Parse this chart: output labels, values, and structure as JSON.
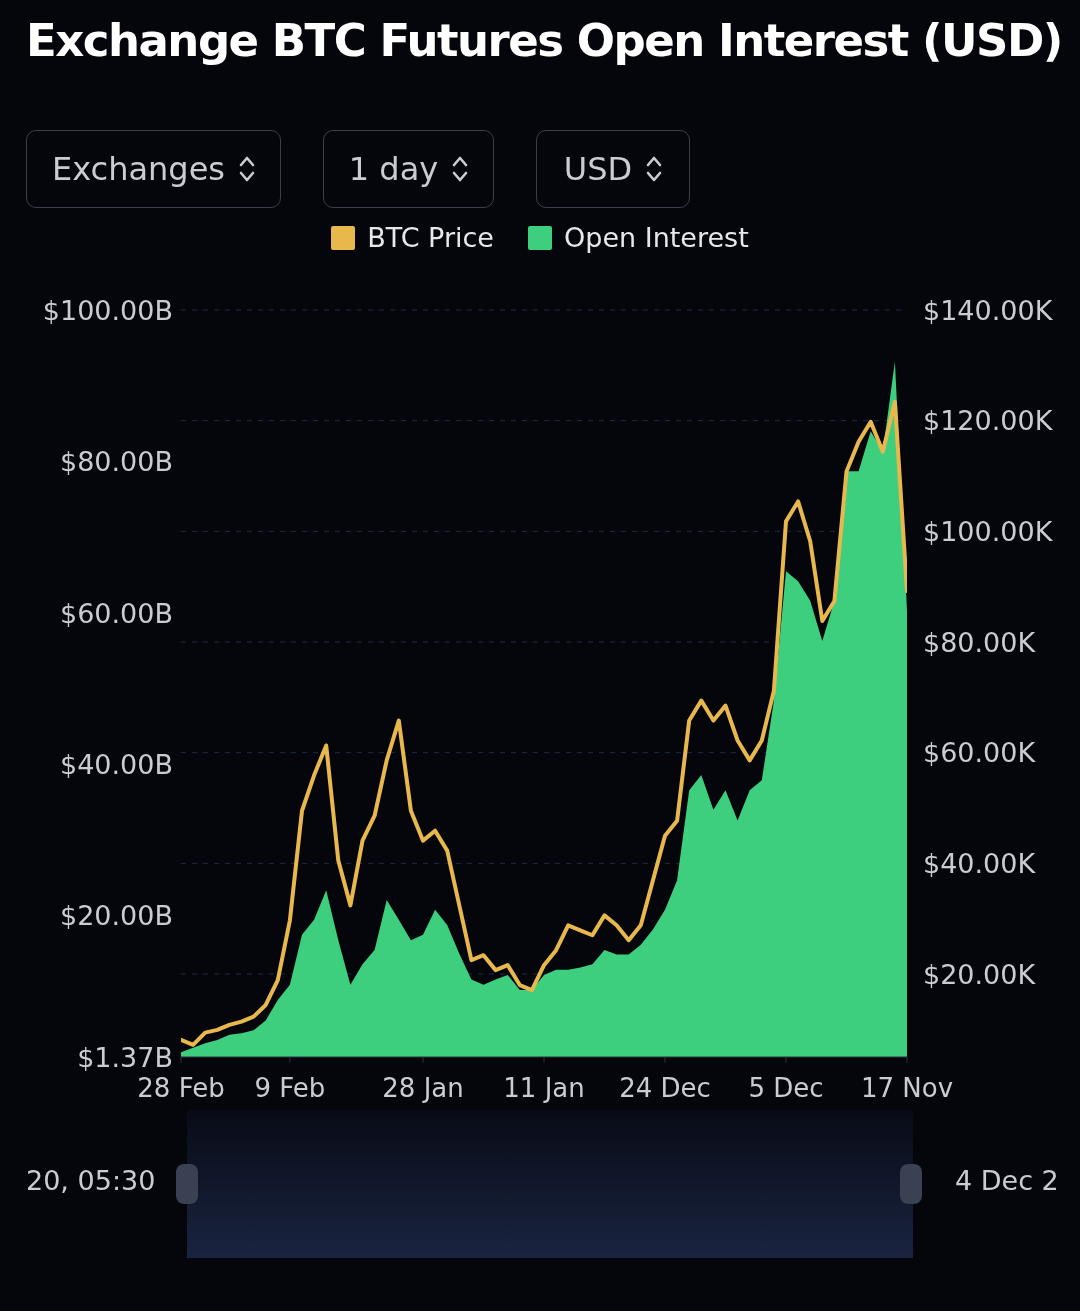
{
  "chart_data": {
    "type": "line",
    "title": "Exchange BTC Futures Open Interest (USD)",
    "categories": [
      "28 Feb",
      null,
      null,
      null,
      null,
      null,
      null,
      null,
      null,
      "9 Feb",
      null,
      null,
      null,
      null,
      null,
      null,
      null,
      null,
      null,
      null,
      "28 Jan",
      null,
      null,
      null,
      null,
      null,
      null,
      null,
      null,
      null,
      "11 Jan",
      null,
      null,
      null,
      null,
      null,
      null,
      null,
      null,
      null,
      "24 Dec",
      null,
      null,
      null,
      null,
      null,
      null,
      null,
      null,
      null,
      "5 Dec",
      null,
      null,
      null,
      null,
      null,
      null,
      null,
      null,
      null,
      "17 Nov"
    ],
    "series": [
      {
        "name": "BTC Price",
        "axis": "y2",
        "color": "#e9b84c",
        "values": [
          8.1,
          7.2,
          9.4,
          9.9,
          10.8,
          11.4,
          12.3,
          14.4,
          18.9,
          29.7,
          49.5,
          55.9,
          61.3,
          40.5,
          32.4,
          44.1,
          48.6,
          58.6,
          65.8,
          49.5,
          44.1,
          45.9,
          42.3,
          32.4,
          22.5,
          23.4,
          20.7,
          21.6,
          18.0,
          17.1,
          21.6,
          24.3,
          28.8,
          27.9,
          27.0,
          30.6,
          28.8,
          26.1,
          28.8,
          36.9,
          45.0,
          47.7,
          65.8,
          69.4,
          65.8,
          68.5,
          62.2,
          58.6,
          62.2,
          71.2,
          101.8,
          105.4,
          98.2,
          83.8,
          87.4,
          110.8,
          116.2,
          119.8,
          114.4,
          123.4,
          89.2
        ]
      },
      {
        "name": "Open Interest",
        "type": "area",
        "color": "#3ecf7e",
        "values": [
          2.0,
          2.6,
          3.2,
          3.6,
          4.3,
          4.5,
          4.9,
          6.2,
          8.9,
          10.9,
          17.5,
          19.5,
          23.4,
          16.8,
          10.9,
          13.6,
          15.5,
          22.1,
          19.5,
          16.8,
          17.5,
          20.8,
          18.8,
          15.0,
          11.6,
          10.9,
          11.6,
          12.2,
          10.2,
          10.2,
          12.2,
          12.9,
          12.9,
          13.2,
          13.6,
          15.5,
          14.9,
          14.9,
          16.2,
          18.2,
          20.8,
          24.7,
          36.6,
          38.6,
          34.0,
          36.6,
          32.6,
          36.6,
          37.9,
          48.4,
          65.5,
          64.2,
          61.6,
          56.3,
          61.6,
          78.7,
          78.7,
          84.0,
          81.3,
          93.2,
          60.3
        ]
      }
    ],
    "ylim": [
      1.37,
      100
    ],
    "yticks": [
      {
        "value": 1.37,
        "label": "$1.37B"
      },
      {
        "value": 20,
        "label": "$20.00B"
      },
      {
        "value": 40,
        "label": "$40.00B"
      },
      {
        "value": 60,
        "label": "$60.00B"
      },
      {
        "value": 80,
        "label": "$80.00B"
      },
      {
        "value": 100,
        "label": "$100.00B"
      }
    ],
    "y2lim": [
      5,
      140
    ],
    "y2ticks": [
      {
        "value": 20,
        "label": "$20.00K"
      },
      {
        "value": 40,
        "label": "$40.00K"
      },
      {
        "value": 60,
        "label": "$60.00K"
      },
      {
        "value": 80,
        "label": "$80.00K"
      },
      {
        "value": 100,
        "label": "$100.00K"
      },
      {
        "value": 120,
        "label": "$120.00K"
      },
      {
        "value": 140,
        "label": "$140.00K"
      }
    ],
    "grid": "y",
    "legend": "top",
    "annotations": [
      "Exchanges",
      "1 day",
      "USD",
      "20, 05:30",
      "4 Dec 2"
    ]
  }
}
